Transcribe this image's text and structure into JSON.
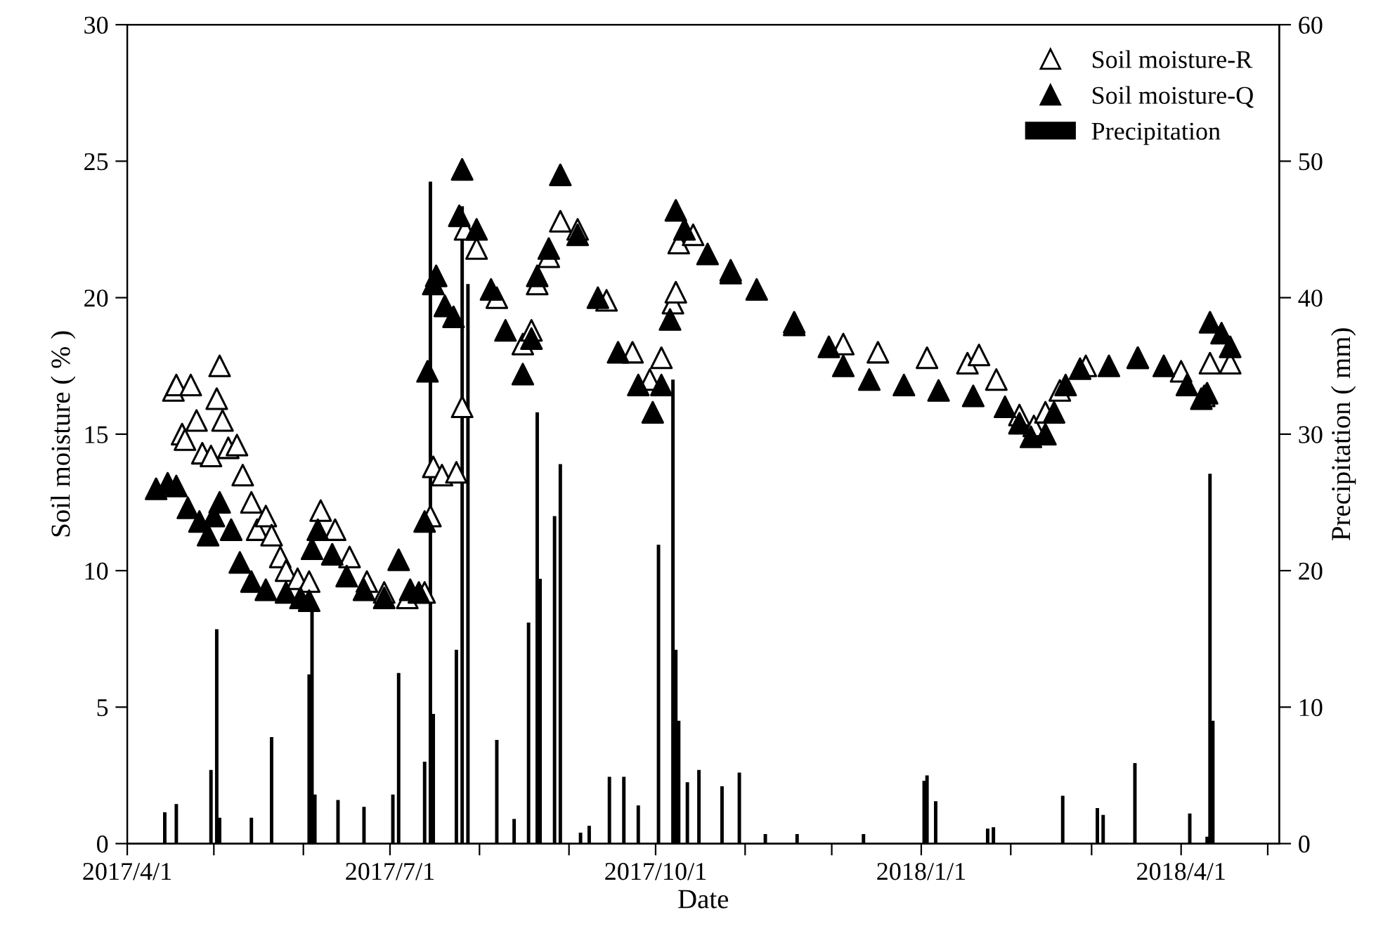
{
  "chart_data": {
    "type": "scatter",
    "xlabel": "Date",
    "ylabel": "Soil moisture ( % )",
    "y2label": "Precipitation ( mm)",
    "xlim": [
      "2017-04-01",
      "2018-05-05"
    ],
    "xticks": [
      {
        "value": "2017-04-01",
        "label": "2017/4/1"
      },
      {
        "value": "2017-05-01",
        "label": null
      },
      {
        "value": "2017-06-01",
        "label": null
      },
      {
        "value": "2017-07-01",
        "label": "2017/7/1"
      },
      {
        "value": "2017-08-01",
        "label": null
      },
      {
        "value": "2017-09-01",
        "label": null
      },
      {
        "value": "2017-10-01",
        "label": "2017/10/1"
      },
      {
        "value": "2017-11-01",
        "label": null
      },
      {
        "value": "2017-12-01",
        "label": null
      },
      {
        "value": "2018-01-01",
        "label": "2018/1/1"
      },
      {
        "value": "2018-02-01",
        "label": null
      },
      {
        "value": "2018-03-01",
        "label": null
      },
      {
        "value": "2018-04-01",
        "label": "2018/4/1"
      },
      {
        "value": "2018-05-01",
        "label": null
      }
    ],
    "ylim": [
      0,
      30
    ],
    "yticks": [
      0,
      5,
      10,
      15,
      20,
      25,
      30
    ],
    "y2lim": [
      0,
      60
    ],
    "y2ticks": [
      0,
      10,
      20,
      30,
      40,
      50,
      60
    ],
    "grid": false,
    "legend": "top right",
    "marker": "triangle",
    "series": [
      {
        "name": "Soil moisture-R",
        "color": "#ffffff",
        "x": [
          "2017-04-17",
          "2017-04-18",
          "2017-04-20",
          "2017-04-21",
          "2017-04-23",
          "2017-04-25",
          "2017-04-27",
          "2017-04-30",
          "2017-05-02",
          "2017-05-03",
          "2017-05-04",
          "2017-05-06",
          "2017-05-09",
          "2017-05-11",
          "2017-05-14",
          "2017-05-16",
          "2017-05-19",
          "2017-05-21",
          "2017-05-24",
          "2017-05-26",
          "2017-05-30",
          "2017-06-03",
          "2017-06-07",
          "2017-06-12",
          "2017-06-17",
          "2017-06-23",
          "2017-06-29",
          "2017-07-07",
          "2017-07-13",
          "2017-07-15",
          "2017-07-16",
          "2017-07-19",
          "2017-07-24",
          "2017-07-26",
          "2017-07-27",
          "2017-07-31",
          "2017-08-07",
          "2017-08-16",
          "2017-08-19",
          "2017-08-21",
          "2017-08-25",
          "2017-08-29",
          "2017-09-04",
          "2017-09-14",
          "2017-09-23",
          "2017-09-29",
          "2017-10-03",
          "2017-10-07",
          "2017-10-08",
          "2017-10-09",
          "2017-10-14",
          "2017-10-27",
          "2017-11-18",
          "2017-12-05",
          "2017-12-17",
          "2018-01-03",
          "2018-01-17",
          "2018-01-21",
          "2018-01-27",
          "2018-02-04",
          "2018-02-09",
          "2018-02-13",
          "2018-02-18",
          "2018-02-27",
          "2018-03-17",
          "2018-04-01",
          "2018-04-09",
          "2018-04-11",
          "2018-04-18"
        ],
        "values": [
          16.6,
          16.8,
          15.0,
          14.8,
          16.8,
          15.5,
          14.3,
          14.2,
          16.3,
          17.5,
          15.5,
          14.5,
          14.6,
          13.5,
          12.5,
          11.5,
          12.0,
          11.3,
          10.5,
          10.0,
          9.7,
          9.6,
          12.2,
          11.5,
          10.5,
          9.6,
          9.2,
          9.0,
          9.2,
          12.0,
          13.8,
          13.5,
          13.6,
          16.0,
          22.5,
          21.8,
          20.0,
          18.3,
          18.8,
          20.5,
          21.5,
          22.8,
          22.5,
          19.9,
          18.0,
          17.0,
          17.8,
          19.8,
          20.2,
          22.0,
          22.3,
          21.0,
          19.1,
          18.3,
          18.0,
          17.8,
          17.6,
          17.9,
          17.0,
          15.7,
          15.3,
          15.8,
          16.6,
          17.5,
          17.8,
          17.3,
          16.4,
          17.6,
          17.6
        ]
      },
      {
        "name": "Soil moisture-Q",
        "color": "#000000",
        "x": [
          "2017-04-11",
          "2017-04-15",
          "2017-04-18",
          "2017-04-22",
          "2017-04-26",
          "2017-04-29",
          "2017-05-01",
          "2017-05-03",
          "2017-05-07",
          "2017-05-10",
          "2017-05-14",
          "2017-05-19",
          "2017-05-26",
          "2017-05-31",
          "2017-06-03",
          "2017-06-04",
          "2017-06-06",
          "2017-06-11",
          "2017-06-16",
          "2017-06-22",
          "2017-06-29",
          "2017-07-04",
          "2017-07-08",
          "2017-07-11",
          "2017-07-13",
          "2017-07-14",
          "2017-07-16",
          "2017-07-17",
          "2017-07-20",
          "2017-07-23",
          "2017-07-25",
          "2017-07-26",
          "2017-07-31",
          "2017-08-05",
          "2017-08-10",
          "2017-08-16",
          "2017-08-19",
          "2017-08-21",
          "2017-08-25",
          "2017-08-29",
          "2017-09-04",
          "2017-09-11",
          "2017-09-18",
          "2017-09-25",
          "2017-09-30",
          "2017-10-03",
          "2017-10-06",
          "2017-10-08",
          "2017-10-11",
          "2017-10-19",
          "2017-10-27",
          "2017-11-05",
          "2017-11-18",
          "2017-11-30",
          "2017-12-05",
          "2017-12-14",
          "2017-12-26",
          "2018-01-07",
          "2018-01-19",
          "2018-01-30",
          "2018-02-04",
          "2018-02-08",
          "2018-02-13",
          "2018-02-16",
          "2018-02-20",
          "2018-02-25",
          "2018-03-07",
          "2018-03-17",
          "2018-03-26",
          "2018-04-03",
          "2018-04-08",
          "2018-04-10",
          "2018-04-11",
          "2018-04-15",
          "2018-04-18"
        ],
        "values": [
          13.0,
          13.2,
          13.1,
          12.3,
          11.8,
          11.3,
          12.0,
          12.5,
          11.5,
          10.3,
          9.6,
          9.3,
          9.2,
          9.0,
          8.9,
          10.8,
          11.5,
          10.6,
          9.8,
          9.3,
          9.0,
          10.4,
          9.3,
          9.2,
          11.8,
          17.3,
          20.5,
          20.8,
          19.7,
          19.3,
          23.0,
          24.7,
          22.5,
          20.3,
          18.8,
          17.2,
          18.5,
          20.8,
          21.8,
          24.5,
          22.3,
          20.0,
          18.0,
          16.8,
          15.8,
          16.8,
          19.2,
          23.2,
          22.5,
          21.6,
          20.9,
          20.3,
          19.0,
          18.2,
          17.5,
          17.0,
          16.8,
          16.6,
          16.4,
          16.0,
          15.4,
          14.9,
          15.0,
          15.8,
          16.8,
          17.4,
          17.5,
          17.8,
          17.5,
          16.8,
          16.3,
          16.5,
          19.1,
          18.7,
          18.2
        ]
      },
      {
        "name": "Precipitation",
        "type": "bar",
        "axis": "y2",
        "color": "#000000",
        "x": [
          "2017-04-14",
          "2017-04-18",
          "2017-04-30",
          "2017-05-02",
          "2017-05-03",
          "2017-05-14",
          "2017-05-21",
          "2017-06-03",
          "2017-06-04",
          "2017-06-05",
          "2017-06-13",
          "2017-06-22",
          "2017-07-02",
          "2017-07-04",
          "2017-07-13",
          "2017-07-15",
          "2017-07-16",
          "2017-07-24",
          "2017-07-26",
          "2017-07-28",
          "2017-08-07",
          "2017-08-13",
          "2017-08-18",
          "2017-08-21",
          "2017-08-22",
          "2017-08-27",
          "2017-08-29",
          "2017-09-05",
          "2017-09-08",
          "2017-09-15",
          "2017-09-20",
          "2017-09-25",
          "2017-10-02",
          "2017-10-07",
          "2017-10-08",
          "2017-10-09",
          "2017-10-12",
          "2017-10-16",
          "2017-10-24",
          "2017-10-30",
          "2017-11-08",
          "2017-11-19",
          "2017-12-12",
          "2018-01-02",
          "2018-01-03",
          "2018-01-06",
          "2018-01-24",
          "2018-01-26",
          "2018-02-19",
          "2018-03-03",
          "2018-03-05",
          "2018-03-16",
          "2018-04-04",
          "2018-04-10",
          "2018-04-11",
          "2018-04-12"
        ],
        "values": [
          2.3,
          2.9,
          5.4,
          15.7,
          1.9,
          1.9,
          7.8,
          12.4,
          17.0,
          3.6,
          3.2,
          2.7,
          3.6,
          12.5,
          6.0,
          48.5,
          9.5,
          14.2,
          46.7,
          41.0,
          7.6,
          1.8,
          16.2,
          31.6,
          19.4,
          24.0,
          27.8,
          0.8,
          1.3,
          4.9,
          4.9,
          2.8,
          21.9,
          34.0,
          14.2,
          9.0,
          4.5,
          5.4,
          4.2,
          5.2,
          0.7,
          0.7,
          0.7,
          4.6,
          5.0,
          3.1,
          1.1,
          1.2,
          3.5,
          2.6,
          2.1,
          5.9,
          2.2,
          0.5,
          27.1,
          9.0
        ]
      }
    ]
  }
}
